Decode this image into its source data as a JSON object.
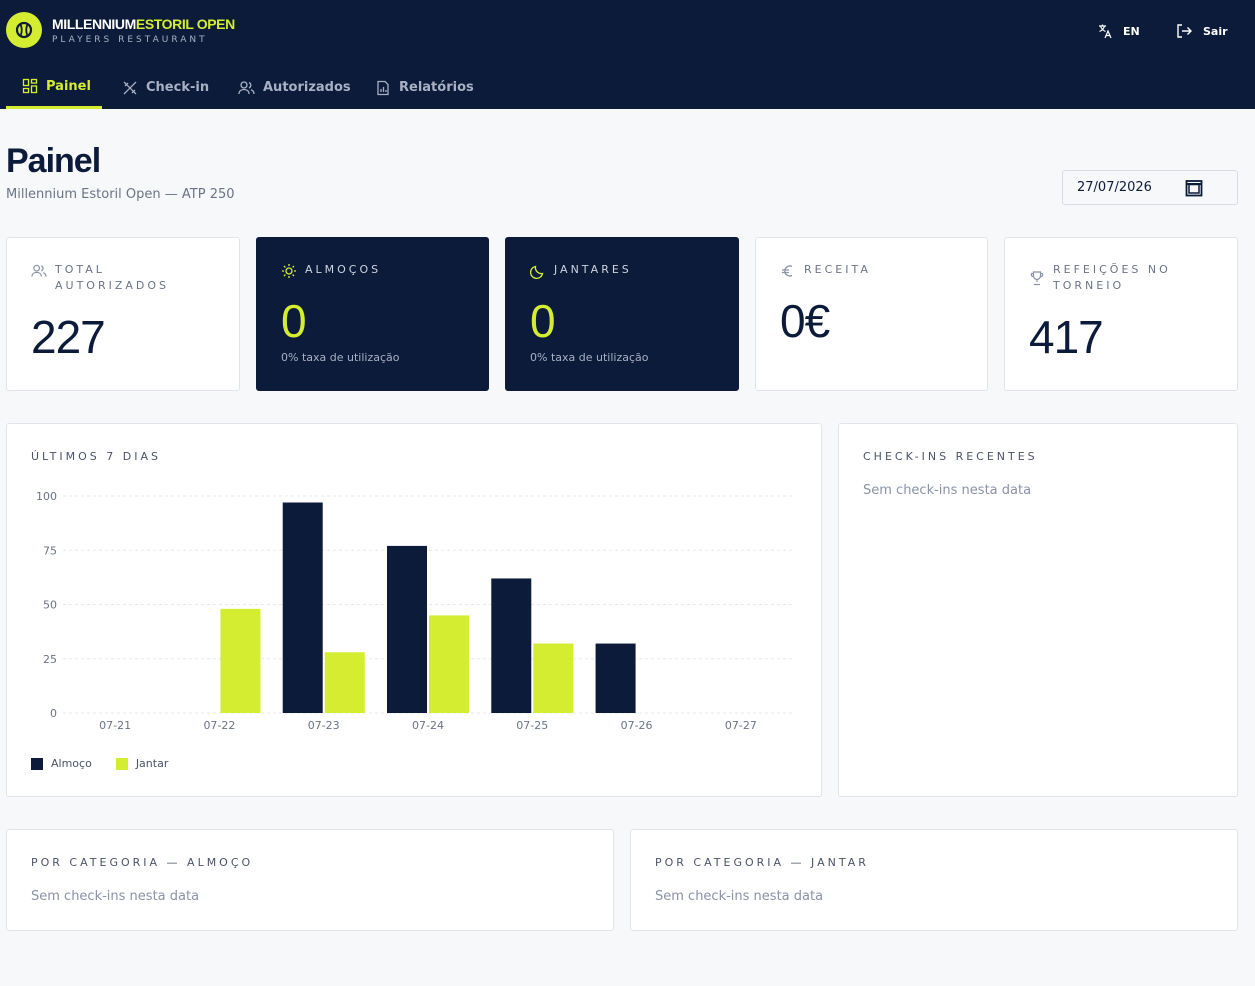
{
  "brand": {
    "title_main": "MILLENNIUM",
    "title_accent": "ESTORIL OPEN",
    "subtitle": "PLAYERS RESTAURANT"
  },
  "header": {
    "lang_label": "EN",
    "logout_label": "Sair"
  },
  "nav": {
    "tabs": [
      {
        "label": "Painel",
        "icon": "grid-icon",
        "active": true
      },
      {
        "label": "Check-in",
        "icon": "utensils-icon",
        "active": false
      },
      {
        "label": "Autorizados",
        "icon": "users-icon",
        "active": false
      },
      {
        "label": "Relatórios",
        "icon": "report-icon",
        "active": false
      }
    ]
  },
  "page": {
    "title": "Painel",
    "subtitle": "Millennium Estoril Open — ATP 250",
    "date_value": "27/07/2026"
  },
  "stats": {
    "total": {
      "label": "TOTAL AUTORIZADOS",
      "value": "227",
      "icon": "users-icon"
    },
    "almocos": {
      "label": "ALMOÇOS",
      "value": "0",
      "note": "0% taxa de utilização",
      "icon": "sun-icon"
    },
    "jantares": {
      "label": "JANTARES",
      "value": "0",
      "note": "0% taxa de utilização",
      "icon": "moon-icon"
    },
    "receita": {
      "label": "RECEITA",
      "value": "0€",
      "icon": "euro-icon"
    },
    "refeicoes": {
      "label": "REFEIÇÕES NO TORNEIO",
      "value": "417",
      "icon": "trophy-icon"
    }
  },
  "chart_panel": {
    "title": "ÚLTIMOS 7 DIAS"
  },
  "chart_data": {
    "type": "bar",
    "categories": [
      "07-21",
      "07-22",
      "07-23",
      "07-24",
      "07-25",
      "07-26",
      "07-27"
    ],
    "series": [
      {
        "name": "Almoço",
        "values": [
          0,
          0,
          97,
          77,
          62,
          32,
          0
        ],
        "color": "#0c1b3a"
      },
      {
        "name": "Jantar",
        "values": [
          0,
          48,
          28,
          45,
          32,
          0,
          0
        ],
        "color": "#d4ed31"
      }
    ],
    "ylim": [
      0,
      100
    ],
    "yticks": [
      "0",
      "25",
      "50",
      "75",
      "100"
    ],
    "grid": true,
    "legend": "bottom-left"
  },
  "recent": {
    "title": "CHECK-INS RECENTES",
    "empty": "Sem check-ins nesta data"
  },
  "categoria_almoco": {
    "title": "POR CATEGORIA — ALMOÇO",
    "empty": "Sem check-ins nesta data"
  },
  "categoria_jantar": {
    "title": "POR CATEGORIA — JANTAR",
    "empty": "Sem check-ins nesta data"
  }
}
